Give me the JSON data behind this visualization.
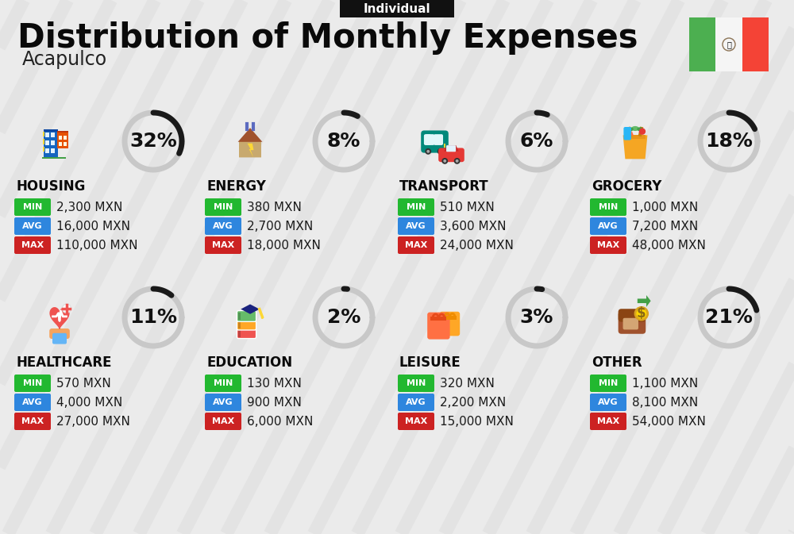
{
  "title": "Distribution of Monthly Expenses",
  "subtitle": "Acapulco",
  "tag": "Individual",
  "background_color": "#ebebeb",
  "categories": [
    {
      "name": "HOUSING",
      "pct": 32,
      "min": "2,300 MXN",
      "avg": "16,000 MXN",
      "max": "110,000 MXN",
      "row": 0,
      "col": 0
    },
    {
      "name": "ENERGY",
      "pct": 8,
      "min": "380 MXN",
      "avg": "2,700 MXN",
      "max": "18,000 MXN",
      "row": 0,
      "col": 1
    },
    {
      "name": "TRANSPORT",
      "pct": 6,
      "min": "510 MXN",
      "avg": "3,600 MXN",
      "max": "24,000 MXN",
      "row": 0,
      "col": 2
    },
    {
      "name": "GROCERY",
      "pct": 18,
      "min": "1,000 MXN",
      "avg": "7,200 MXN",
      "max": "48,000 MXN",
      "row": 0,
      "col": 3
    },
    {
      "name": "HEALTHCARE",
      "pct": 11,
      "min": "570 MXN",
      "avg": "4,000 MXN",
      "max": "27,000 MXN",
      "row": 1,
      "col": 0
    },
    {
      "name": "EDUCATION",
      "pct": 2,
      "min": "130 MXN",
      "avg": "900 MXN",
      "max": "6,000 MXN",
      "row": 1,
      "col": 1
    },
    {
      "name": "LEISURE",
      "pct": 3,
      "min": "320 MXN",
      "avg": "2,200 MXN",
      "max": "15,000 MXN",
      "row": 1,
      "col": 2
    },
    {
      "name": "OTHER",
      "pct": 21,
      "min": "1,100 MXN",
      "avg": "8,100 MXN",
      "max": "54,000 MXN",
      "row": 1,
      "col": 3
    }
  ],
  "color_min": "#22b830",
  "color_avg": "#2e86de",
  "color_max": "#cc2222",
  "arc_color_filled": "#1a1a1a",
  "arc_color_empty": "#c8c8c8",
  "title_fontsize": 30,
  "subtitle_fontsize": 17,
  "tag_fontsize": 11,
  "category_fontsize": 12,
  "value_fontsize": 11,
  "pct_fontsize": 18
}
